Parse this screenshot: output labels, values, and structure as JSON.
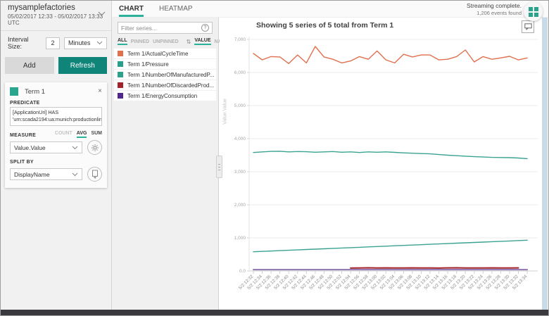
{
  "env": {
    "name": "mysamplefactories",
    "date_range": "05/02/2017 12:33  -  05/02/2017 13:33 UTC"
  },
  "interval": {
    "label": "Interval Size:",
    "value": "2",
    "unit": "Minutes"
  },
  "actions": {
    "add_label": "Add",
    "refresh_label": "Refresh"
  },
  "term": {
    "title": "Term 1",
    "close_icon": "×",
    "predicate_label": "PREDICATE",
    "predicate_line1": "[ApplicationUri] HAS",
    "predicate_line2": "'urn:scada2194:ua:munich:productionline0",
    "measure_label": "MEASURE",
    "measure": {
      "count": "COUNT",
      "avg": "AVG",
      "sum": "SUM"
    },
    "measure_value": "Value.Value",
    "split_label": "SPLIT BY",
    "split_value": "DisplayName"
  },
  "tabs": {
    "chart": "CHART",
    "heatmap": "HEATMAP"
  },
  "status": {
    "line1": "Streaming complete.",
    "line2": "1,206 events found"
  },
  "series_panel": {
    "filter_placeholder": "Filter series...",
    "help_icon": "?",
    "filters": {
      "all": "ALL",
      "pinned": "PINNED",
      "unpinned": "UNPINNED",
      "sort_icon": "⇅",
      "value": "VALUE",
      "name": "NAME"
    },
    "items": [
      {
        "label": "Term 1/ActualCycleTime",
        "color": "#e1704e"
      },
      {
        "label": "Term 1/Pressure",
        "color": "#27a08a"
      },
      {
        "label": "Term 1/NumberOfManufacturedP...",
        "color": "#2aa38d"
      },
      {
        "label": "Term 1/NumberOfDiscardedProd...",
        "color": "#a2232a"
      },
      {
        "label": "Term 1/EnergyConsumption",
        "color": "#53268e"
      }
    ]
  },
  "chart_data": {
    "type": "line",
    "title": "Showing 5 series of 5 total from Term 1",
    "xlabel": "",
    "ylabel": "Value.Value",
    "ylim": [
      0,
      7000
    ],
    "grid": true,
    "legend_position": "left-list",
    "yticks": [
      0,
      1000,
      2000,
      3000,
      4000,
      5000,
      6000,
      7000
    ],
    "ytick_labels": [
      "0.0",
      "1,000",
      "2,000",
      "3,000",
      "4,000",
      "5,000",
      "6,000",
      "7,000"
    ],
    "x": [
      "5/2 12:32",
      "5/2 12:34",
      "5/2 12:36",
      "5/2 12:38",
      "5/2 12:40",
      "5/2 12:42",
      "5/2 12:44",
      "5/2 12:46",
      "5/2 12:48",
      "5/2 12:50",
      "5/2 12:52",
      "5/2 12:54",
      "5/2 12:56",
      "5/2 12:58",
      "5/2 13:00",
      "5/2 13:02",
      "5/2 13:04",
      "5/2 13:06",
      "5/2 13:08",
      "5/2 13:10",
      "5/2 13:12",
      "5/2 13:14",
      "5/2 13:16",
      "5/2 13:18",
      "5/2 13:20",
      "5/2 13:22",
      "5/2 13:24",
      "5/2 13:26",
      "5/2 13:28",
      "5/2 13:30",
      "5/2 13:32",
      "5/2 13:34"
    ],
    "series": [
      {
        "name": "Term 1/ActualCycleTime",
        "color": "#e1704e",
        "width": 1.4,
        "values": [
          6575,
          6384,
          6480,
          6470,
          6270,
          6530,
          6290,
          6788,
          6470,
          6400,
          6290,
          6350,
          6480,
          6400,
          6650,
          6380,
          6290,
          6550,
          6470,
          6530,
          6530,
          6380,
          6400,
          6480,
          6680,
          6320,
          6480,
          6400,
          6440,
          6490,
          6380,
          6440
        ]
      },
      {
        "name": "Term 1/Pressure",
        "color": "#3aa392",
        "width": 1.4,
        "values": [
          3580,
          3600,
          3615,
          3620,
          3600,
          3610,
          3605,
          3590,
          3600,
          3610,
          3590,
          3600,
          3580,
          3600,
          3590,
          3600,
          3585,
          3570,
          3560,
          3550,
          3540,
          3520,
          3500,
          3485,
          3470,
          3455,
          3445,
          3435,
          3430,
          3425,
          3415,
          3395
        ]
      },
      {
        "name": "Term 1/NumberOfManufacturedP...",
        "color": "#3aa392",
        "width": 1.4,
        "values": [
          580,
          591,
          603,
          614,
          625,
          636,
          648,
          659,
          670,
          682,
          693,
          704,
          715,
          727,
          738,
          749,
          761,
          772,
          783,
          794,
          806,
          817,
          828,
          840,
          851,
          862,
          873,
          885,
          896,
          907,
          919,
          930
        ]
      },
      {
        "name": "Term 1/NumberOfDiscardedProd...",
        "color": "#a2232a",
        "width": 2,
        "values": [
          null,
          null,
          null,
          null,
          null,
          null,
          null,
          null,
          null,
          null,
          null,
          88,
          92,
          95,
          90,
          93,
          89,
          91,
          94,
          90,
          92,
          88,
          93,
          95,
          90,
          89,
          92,
          94,
          90,
          91,
          93,
          null
        ]
      },
      {
        "name": "Term 1/EnergyConsumption",
        "color": "#8e74b2",
        "width": 2,
        "values": [
          40,
          40,
          40,
          40,
          40,
          40,
          40,
          40,
          40,
          40,
          40,
          40,
          40,
          40,
          40,
          40,
          40,
          40,
          40,
          40,
          40,
          40,
          40,
          40,
          40,
          40,
          40,
          40,
          40,
          40,
          40,
          40
        ]
      }
    ]
  }
}
